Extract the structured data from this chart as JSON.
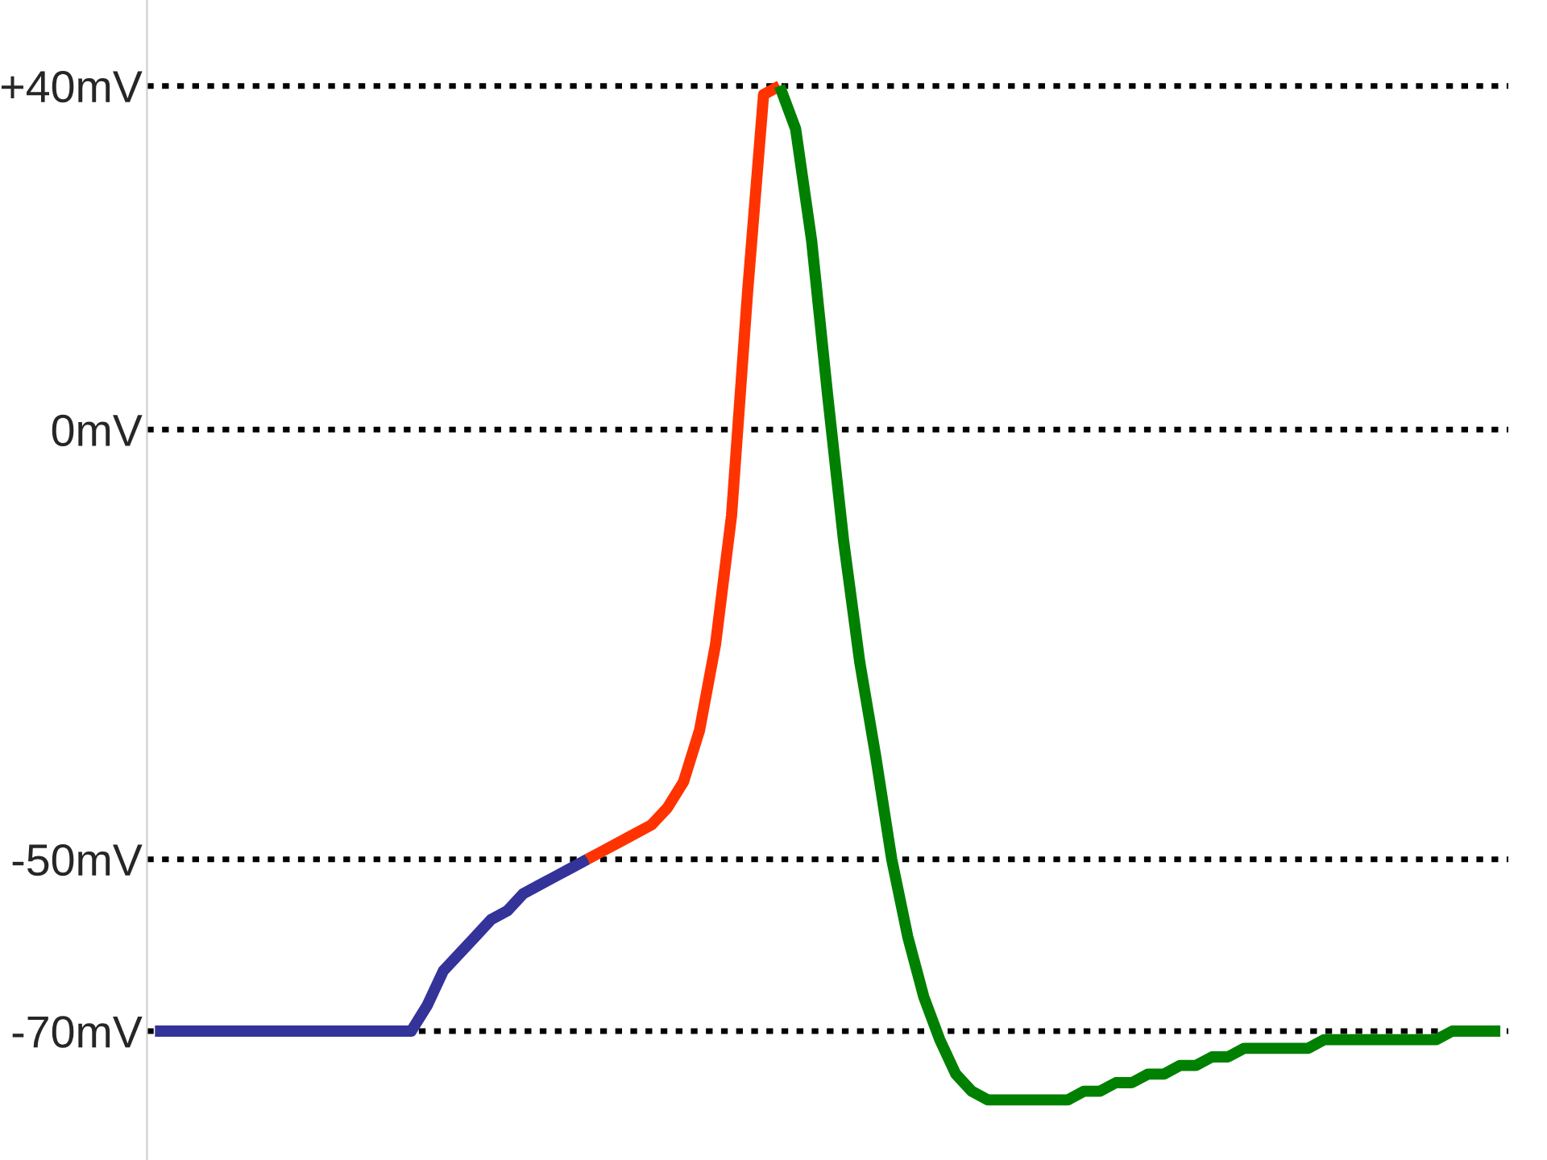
{
  "chart_data": {
    "type": "line",
    "categories": [
      null,
      null,
      null,
      null,
      null,
      null,
      null,
      null,
      null,
      null,
      null,
      null,
      null,
      null,
      null,
      null,
      null,
      null,
      null,
      null,
      null,
      null,
      null,
      null,
      null,
      null,
      null,
      null,
      null,
      null,
      null,
      null,
      null,
      null,
      null,
      null,
      null,
      null,
      null,
      null,
      null,
      null,
      null,
      null,
      null,
      null,
      null,
      null,
      null,
      null,
      null,
      null,
      null,
      null,
      null,
      null,
      null,
      null,
      null,
      null,
      null,
      null,
      null,
      null,
      null,
      null,
      null,
      null,
      null,
      null,
      null,
      null,
      null,
      null,
      null,
      null,
      null,
      null,
      null,
      null,
      null,
      null,
      null,
      null,
      null
    ],
    "series": [
      {
        "color": "#333399",
        "values": [
          -70,
          -70,
          -70,
          -70,
          -70,
          -70,
          -70,
          -70,
          -70,
          -70,
          -70,
          -70,
          -70,
          -70,
          -70,
          -70,
          -70,
          -67,
          -63,
          -61,
          -59,
          -57,
          -56,
          -54,
          -53,
          -52,
          -51,
          -50,
          null,
          null,
          null,
          null,
          null,
          null,
          null,
          null,
          null,
          null,
          null,
          null,
          null,
          null,
          null,
          null,
          null,
          null,
          null,
          null,
          null,
          null,
          null,
          null,
          null,
          null,
          null,
          null,
          null,
          null,
          null,
          null,
          null,
          null,
          null,
          null,
          null,
          null,
          null,
          null,
          null,
          null,
          null,
          null,
          null,
          null,
          null,
          null,
          null,
          null,
          null,
          null,
          null,
          null,
          null,
          null,
          null
        ]
      },
      {
        "color": "#ff3300",
        "values": [
          null,
          null,
          null,
          null,
          null,
          null,
          null,
          null,
          null,
          null,
          null,
          null,
          null,
          null,
          null,
          null,
          null,
          null,
          null,
          null,
          null,
          null,
          null,
          null,
          null,
          null,
          null,
          -50,
          -49,
          -48,
          -47,
          -46,
          -44,
          -41,
          -35,
          -25,
          -10,
          16,
          39,
          40,
          null,
          null,
          null,
          null,
          null,
          null,
          null,
          null,
          null,
          null,
          null,
          null,
          null,
          null,
          null,
          null,
          null,
          null,
          null,
          null,
          null,
          null,
          null,
          null,
          null,
          null,
          null,
          null,
          null,
          null,
          null,
          null,
          null,
          null,
          null,
          null,
          null,
          null,
          null,
          null,
          null,
          null,
          null,
          null,
          null
        ]
      },
      {
        "color": "#008000",
        "values": [
          null,
          null,
          null,
          null,
          null,
          null,
          null,
          null,
          null,
          null,
          null,
          null,
          null,
          null,
          null,
          null,
          null,
          null,
          null,
          null,
          null,
          null,
          null,
          null,
          null,
          null,
          null,
          null,
          null,
          null,
          null,
          null,
          null,
          null,
          null,
          null,
          null,
          null,
          null,
          40,
          35,
          22,
          4,
          -13,
          -27,
          -38,
          -50,
          -59,
          -66,
          -71,
          -75,
          -77,
          -78,
          -78,
          -78,
          -78,
          -78,
          -78,
          -77,
          -77,
          -76,
          -76,
          -75,
          -75,
          -74,
          -74,
          -73,
          -73,
          -72,
          -72,
          -72,
          -72,
          -72,
          -71,
          -71,
          -71,
          -71,
          -71,
          -71,
          -71,
          -71,
          -70,
          -70,
          -70,
          -70
        ]
      }
    ],
    "yticks": [
      {
        "value": 40,
        "label": "+40mV"
      },
      {
        "value": 0,
        "label": "0mV"
      },
      {
        "value": -50,
        "label": "-50mV"
      },
      {
        "value": -70,
        "label": "-70mV"
      }
    ],
    "ylim": [
      -85,
      50
    ],
    "grid": "y",
    "tick_labels": "y",
    "line_style": "solid"
  }
}
